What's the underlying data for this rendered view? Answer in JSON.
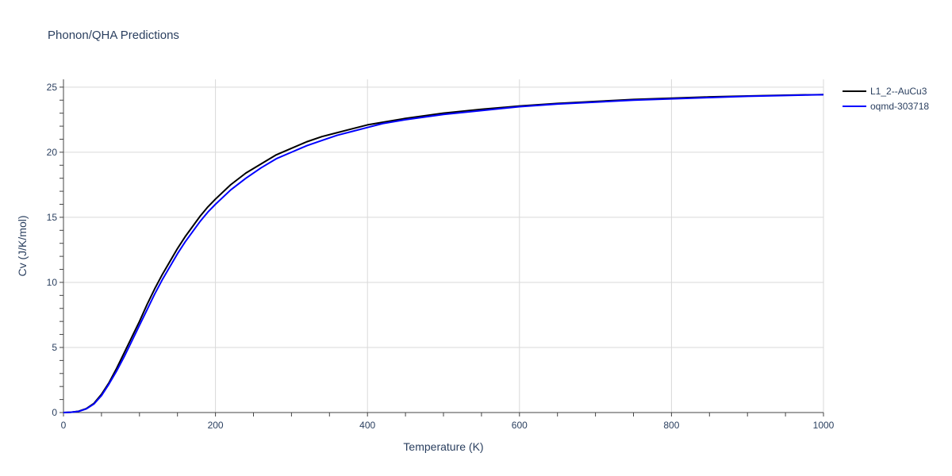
{
  "chart_data": {
    "type": "line",
    "title": "Phonon/QHA Predictions",
    "xlabel": "Temperature (K)",
    "ylabel": "Cv (J/K/mol)",
    "xlim": [
      0,
      1000
    ],
    "ylim": [
      0,
      25.6
    ],
    "xticks": [
      0,
      200,
      400,
      600,
      800,
      1000
    ],
    "yticks": [
      0,
      5,
      10,
      15,
      20,
      25
    ],
    "grid": true,
    "legend_position": "top-right",
    "series": [
      {
        "name": "L1_2--AuCu3",
        "color": "#000000",
        "x": [
          0,
          10,
          20,
          30,
          40,
          50,
          60,
          70,
          80,
          90,
          100,
          110,
          120,
          130,
          140,
          150,
          160,
          170,
          180,
          190,
          200,
          220,
          240,
          260,
          280,
          300,
          320,
          340,
          360,
          380,
          400,
          420,
          450,
          500,
          550,
          600,
          650,
          700,
          750,
          800,
          850,
          900,
          950,
          1000
        ],
        "y": [
          0,
          0.02,
          0.1,
          0.3,
          0.7,
          1.4,
          2.3,
          3.4,
          4.6,
          5.8,
          7.0,
          8.3,
          9.5,
          10.6,
          11.6,
          12.6,
          13.5,
          14.3,
          15.1,
          15.8,
          16.4,
          17.5,
          18.4,
          19.1,
          19.8,
          20.3,
          20.8,
          21.2,
          21.5,
          21.8,
          22.1,
          22.3,
          22.6,
          23.0,
          23.3,
          23.55,
          23.75,
          23.9,
          24.05,
          24.15,
          24.25,
          24.32,
          24.38,
          24.43
        ]
      },
      {
        "name": "oqmd-303718",
        "color": "#0000ff",
        "x": [
          0,
          10,
          20,
          30,
          40,
          50,
          60,
          70,
          80,
          90,
          100,
          110,
          120,
          130,
          140,
          150,
          160,
          170,
          180,
          190,
          200,
          220,
          240,
          260,
          280,
          300,
          320,
          340,
          360,
          380,
          400,
          420,
          450,
          500,
          550,
          600,
          650,
          700,
          750,
          800,
          850,
          900,
          950,
          1000
        ],
        "y": [
          0,
          0.02,
          0.09,
          0.28,
          0.65,
          1.3,
          2.2,
          3.2,
          4.3,
          5.5,
          6.7,
          7.9,
          9.1,
          10.2,
          11.2,
          12.2,
          13.1,
          13.9,
          14.7,
          15.4,
          16.0,
          17.1,
          18.0,
          18.8,
          19.5,
          20.0,
          20.5,
          20.9,
          21.3,
          21.6,
          21.9,
          22.2,
          22.5,
          22.9,
          23.2,
          23.5,
          23.7,
          23.85,
          24.0,
          24.1,
          24.2,
          24.3,
          24.36,
          24.42
        ]
      }
    ]
  }
}
